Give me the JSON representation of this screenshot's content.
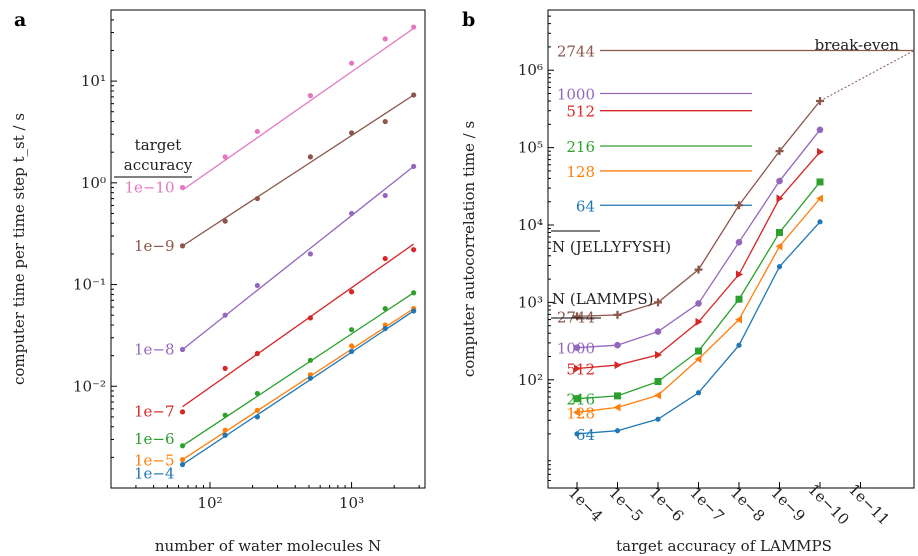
{
  "colors": {
    "1e-4": "#1f77b4",
    "1e-5": "#ff7f0e",
    "1e-6": "#2ca02c",
    "1e-7": "#d62728",
    "1e-8": "#9467bd",
    "1e-9": "#8c564b",
    "1e-10": "#e377c2"
  },
  "chart_data": [
    {
      "panel_label": "a",
      "type": "scatter",
      "xscale": "log",
      "yscale": "log",
      "xlim": [
        20,
        3300
      ],
      "ylim": [
        0.001,
        50
      ],
      "xlabel": "number of water molecules N",
      "ylabel": "computer time per time step t_st / s",
      "xticks": [
        {
          "v": 100,
          "label": "10²"
        },
        {
          "v": 1000,
          "label": "10³"
        }
      ],
      "yticks": [
        {
          "v": 0.01,
          "label": "10⁻²"
        },
        {
          "v": 0.1,
          "label": "10⁻¹"
        },
        {
          "v": 1,
          "label": "10⁰"
        },
        {
          "v": 10,
          "label": "10¹"
        }
      ],
      "legend_title": [
        "target",
        "accuracy"
      ],
      "x": [
        64,
        128,
        216,
        512,
        1000,
        1728,
        2744
      ],
      "series": [
        {
          "name": "1e−10",
          "key": "1e-10",
          "values": [
            0.9,
            1.8,
            3.2,
            7.2,
            15,
            26,
            34
          ],
          "fit": [
            0.85,
            33
          ]
        },
        {
          "name": "1e−9",
          "key": "1e-9",
          "values": [
            0.24,
            0.42,
            0.7,
            1.8,
            3.1,
            4.0,
            7.3
          ],
          "fit": [
            0.24,
            7.3
          ]
        },
        {
          "name": "1e−8",
          "key": "1e-8",
          "values": [
            0.023,
            0.05,
            0.098,
            0.2,
            0.5,
            0.75,
            1.45
          ],
          "fit": [
            0.023,
            1.45
          ]
        },
        {
          "name": "1e−7",
          "key": "1e-7",
          "values": [
            0.0056,
            0.015,
            0.021,
            0.047,
            0.085,
            0.18,
            0.22
          ],
          "fit": [
            0.0063,
            0.25
          ]
        },
        {
          "name": "1e−6",
          "key": "1e-6",
          "values": [
            0.0026,
            0.0052,
            0.0085,
            0.018,
            0.036,
            0.058,
            0.083
          ],
          "fit": [
            0.0026,
            0.083
          ]
        },
        {
          "name": "1e−5",
          "key": "1e-5",
          "values": [
            0.0019,
            0.0037,
            0.0058,
            0.013,
            0.025,
            0.04,
            0.058
          ],
          "fit": [
            0.0019,
            0.058
          ]
        },
        {
          "name": "1e−4",
          "key": "1e-4",
          "values": [
            0.0017,
            0.0033,
            0.005,
            0.012,
            0.022,
            0.037,
            0.055
          ],
          "fit": [
            0.0017,
            0.055
          ]
        }
      ]
    },
    {
      "panel_label": "b",
      "type": "line",
      "yscale": "log",
      "ylim": [
        4,
        6000000
      ],
      "xlabel": "target accuracy of LAMMPS",
      "ylabel": "computer autocorrelation time / s",
      "categories": [
        "1e−4",
        "1e−5",
        "1e−6",
        "1e−7",
        "1e−8",
        "1e−9",
        "1e−10",
        "1e−11"
      ],
      "yticks": [
        {
          "v": 100,
          "label": "10²"
        },
        {
          "v": 1000,
          "label": "10³"
        },
        {
          "v": 10000,
          "label": "10⁴"
        },
        {
          "v": 100000,
          "label": "10⁵"
        },
        {
          "v": 1000000,
          "label": "10⁶"
        }
      ],
      "lammps_title": "N (LAMMPS)",
      "lammps": [
        {
          "name": "2744",
          "key": "1e-9",
          "values": [
            660,
            690,
            1000,
            2650,
            18000,
            90000,
            400000
          ]
        },
        {
          "name": "1000",
          "key": "1e-8",
          "values": [
            260,
            280,
            420,
            970,
            6000,
            37000,
            170000
          ]
        },
        {
          "name": "512",
          "key": "1e-7",
          "values": [
            140,
            155,
            210,
            560,
            2300,
            22000,
            88000
          ]
        },
        {
          "name": "216",
          "key": "1e-6",
          "values": [
            57,
            62,
            95,
            235,
            1100,
            8000,
            36000
          ]
        },
        {
          "name": "128",
          "key": "1e-5",
          "values": [
            38,
            44,
            63,
            185,
            600,
            5300,
            22000
          ]
        },
        {
          "name": "64",
          "key": "1e-4",
          "values": [
            20,
            22,
            31,
            68,
            280,
            2900,
            11000
          ]
        }
      ],
      "jellyfysh_title": "N (JELLYFYSH)",
      "jellyfysh": [
        {
          "name": "2744",
          "key": "1e-9",
          "value": 1800000
        },
        {
          "name": "1000",
          "key": "1e-8",
          "value": 500000
        },
        {
          "name": "512",
          "key": "1e-7",
          "value": 300000
        },
        {
          "name": "216",
          "key": "1e-6",
          "value": 105000
        },
        {
          "name": "128",
          "key": "1e-5",
          "value": 50000
        },
        {
          "name": "64",
          "key": "1e-4",
          "value": 18000
        }
      ],
      "break_even_label": "break-even"
    }
  ]
}
